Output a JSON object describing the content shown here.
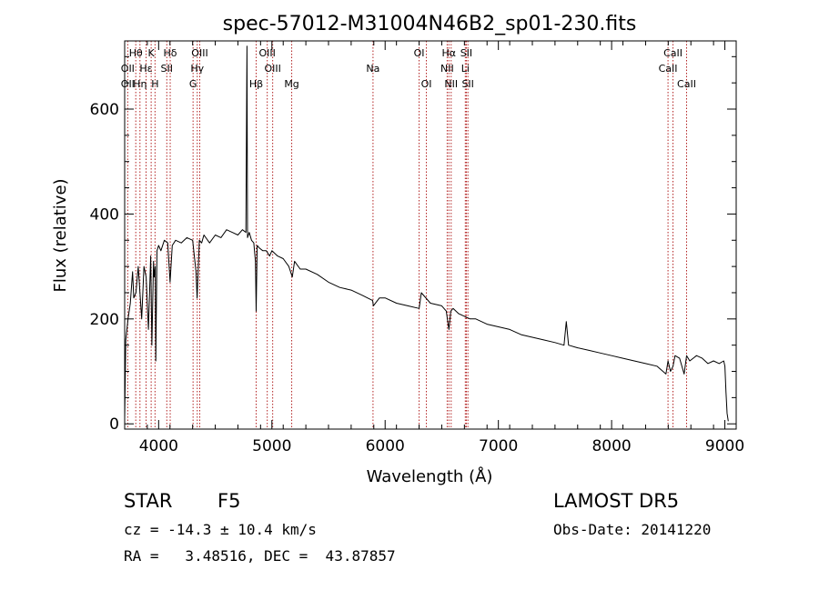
{
  "chart_data": {
    "type": "line",
    "title": "spec-57012-M31004N46B2_sp01-230.fits",
    "xlabel": "Wavelength (Å)",
    "ylabel": "Flux (relative)",
    "xlim": [
      3700,
      9100
    ],
    "ylim": [
      -10,
      730
    ],
    "x_ticks": [
      4000,
      5000,
      6000,
      7000,
      8000,
      9000
    ],
    "y_ticks": [
      0,
      200,
      400,
      600
    ],
    "grid": false,
    "series": [
      {
        "color": "#000000",
        "x": [
          3700,
          3710,
          3730,
          3750,
          3770,
          3780,
          3800,
          3820,
          3850,
          3870,
          3890,
          3910,
          3930,
          3940,
          3955,
          3960,
          3970,
          3975,
          3985,
          4000,
          4020,
          4050,
          4080,
          4101,
          4120,
          4150,
          4200,
          4250,
          4300,
          4330,
          4340,
          4360,
          4380,
          4400,
          4450,
          4500,
          4550,
          4600,
          4650,
          4700,
          4740,
          4770,
          4780,
          4785,
          4800,
          4820,
          4840,
          4855,
          4861,
          4870,
          4890,
          4920,
          4950,
          4980,
          5000,
          5050,
          5100,
          5150,
          5180,
          5200,
          5250,
          5300,
          5400,
          5500,
          5600,
          5700,
          5800,
          5890,
          5896,
          5950,
          6000,
          6100,
          6200,
          6300,
          6320,
          6400,
          6500,
          6540,
          6563,
          6580,
          6600,
          6650,
          6700,
          6750,
          6800,
          6900,
          7000,
          7100,
          7200,
          7300,
          7400,
          7500,
          7580,
          7600,
          7620,
          7700,
          7800,
          7900,
          8000,
          8100,
          8200,
          8300,
          8400,
          8480,
          8498,
          8520,
          8542,
          8560,
          8600,
          8640,
          8662,
          8690,
          8750,
          8800,
          8850,
          8900,
          8950,
          8990,
          9000,
          9010,
          9020,
          9030
        ],
        "y": [
          10,
          160,
          200,
          230,
          290,
          240,
          250,
          300,
          200,
          300,
          280,
          180,
          320,
          150,
          310,
          280,
          300,
          120,
          330,
          340,
          330,
          350,
          345,
          270,
          340,
          350,
          345,
          355,
          350,
          290,
          240,
          350,
          345,
          360,
          345,
          360,
          355,
          370,
          365,
          360,
          370,
          365,
          720,
          355,
          365,
          350,
          345,
          310,
          215,
          340,
          335,
          330,
          330,
          320,
          330,
          320,
          315,
          300,
          280,
          310,
          295,
          295,
          285,
          270,
          260,
          255,
          245,
          235,
          225,
          240,
          240,
          230,
          225,
          220,
          250,
          230,
          225,
          215,
          180,
          215,
          220,
          210,
          205,
          200,
          200,
          190,
          185,
          180,
          170,
          165,
          160,
          155,
          150,
          195,
          150,
          145,
          140,
          135,
          130,
          125,
          120,
          115,
          110,
          95,
          120,
          100,
          110,
          130,
          125,
          95,
          130,
          120,
          130,
          125,
          115,
          120,
          115,
          120,
          110,
          60,
          20,
          5
        ]
      }
    ],
    "lines": [
      {
        "name": "Hθ",
        "wave": 3798,
        "tier": 0
      },
      {
        "name": "OII",
        "wave": 3727,
        "tier": 1
      },
      {
        "name": "OII",
        "wave": 3727,
        "tier": 2
      },
      {
        "name": "Hη",
        "wave": 3835,
        "tier": 2
      },
      {
        "name": "Hε",
        "wave": 3889,
        "tier": 1
      },
      {
        "name": "K",
        "wave": 3934,
        "tier": 0
      },
      {
        "name": "H",
        "wave": 3968,
        "tier": 2
      },
      {
        "name": "Hδ",
        "wave": 4102,
        "tier": 0
      },
      {
        "name": "SII",
        "wave": 4072,
        "tier": 1
      },
      {
        "name": "G",
        "wave": 4304,
        "tier": 2
      },
      {
        "name": "OIII",
        "wave": 4363,
        "tier": 0
      },
      {
        "name": "Hγ",
        "wave": 4341,
        "tier": 1
      },
      {
        "name": "Hβ",
        "wave": 4861,
        "tier": 2
      },
      {
        "name": "OIII",
        "wave": 4959,
        "tier": 0
      },
      {
        "name": "OIII",
        "wave": 5007,
        "tier": 1
      },
      {
        "name": "Mg",
        "wave": 5175,
        "tier": 2
      },
      {
        "name": "Na",
        "wave": 5893,
        "tier": 1
      },
      {
        "name": "OI",
        "wave": 6300,
        "tier": 0
      },
      {
        "name": "OI",
        "wave": 6364,
        "tier": 2
      },
      {
        "name": "Hα",
        "wave": 6563,
        "tier": 0
      },
      {
        "name": "NII",
        "wave": 6548,
        "tier": 1
      },
      {
        "name": "NII",
        "wave": 6583,
        "tier": 2
      },
      {
        "name": "SII",
        "wave": 6717,
        "tier": 0
      },
      {
        "name": "Li",
        "wave": 6708,
        "tier": 1
      },
      {
        "name": "SII",
        "wave": 6731,
        "tier": 2
      },
      {
        "name": "CaII",
        "wave": 8542,
        "tier": 0
      },
      {
        "name": "CaII",
        "wave": 8498,
        "tier": 1
      },
      {
        "name": "CaII",
        "wave": 8662,
        "tier": 2
      }
    ],
    "line_color": "#b22222"
  },
  "info": {
    "class": "STAR",
    "subclass": "F5",
    "survey": "LAMOST DR5",
    "cz": "cz = -14.3 ± 10.4 km/s",
    "obs_date": "Obs-Date: 20141220",
    "radec": "RA =   3.48516, DEC =  43.87857"
  }
}
